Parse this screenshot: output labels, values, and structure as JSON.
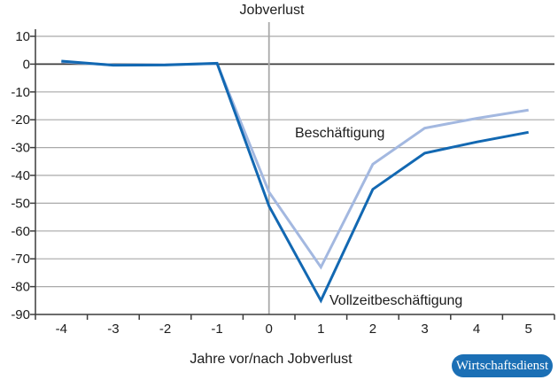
{
  "title": "Jobverlust",
  "x_axis_title": "Jahre vor/nach Jobverlust",
  "source_badge": {
    "label": "Wirtschaftsdienst"
  },
  "colors": {
    "background": "#ffffff",
    "grid": "#a9a9a9",
    "axis": "#3c3c3c",
    "zero_line": "#3c3c3c",
    "marker_line": "#a9a9a9",
    "badge_bg": "#1b6fb5",
    "badge_text": "#ffffff",
    "text": "#1c1c1c"
  },
  "chart_data": {
    "type": "line",
    "title": "Jobverlust",
    "xlabel": "Jahre vor/nach Jobverlust",
    "ylabel": "",
    "x": [
      -4,
      -3,
      -2,
      -1,
      0,
      1,
      2,
      3,
      4,
      5
    ],
    "series": [
      {
        "name": "Beschäftigung",
        "color": "#a3b8e0",
        "values": [
          0.8,
          -0.3,
          -0.2,
          0.2,
          -46,
          -73,
          -36,
          -23,
          -19.5,
          -16.5
        ]
      },
      {
        "name": "Vollzeitbeschäftigung",
        "color": "#1268b2",
        "values": [
          1.1,
          -0.4,
          -0.3,
          0.3,
          -51,
          -85,
          -45,
          -32,
          -28,
          -24.5
        ]
      }
    ],
    "ylim": [
      -90,
      10
    ],
    "xlim": [
      -4.5,
      5.5
    ],
    "y_ticks": [
      10,
      0,
      -10,
      -20,
      -30,
      -40,
      -50,
      -60,
      -70,
      -80,
      -90
    ],
    "x_tick_labels": [
      -4,
      -3,
      -2,
      -1,
      0,
      1,
      2,
      3,
      4,
      5
    ],
    "x_tick_marks": [
      -4.5,
      -3.5,
      -2.5,
      -1.5,
      -0.5,
      0.5,
      1.5,
      2.5,
      3.5,
      4.5,
      5.5
    ],
    "grid": "horizontal",
    "legend_position": "inline-annotations",
    "marker_line_x": 0
  }
}
